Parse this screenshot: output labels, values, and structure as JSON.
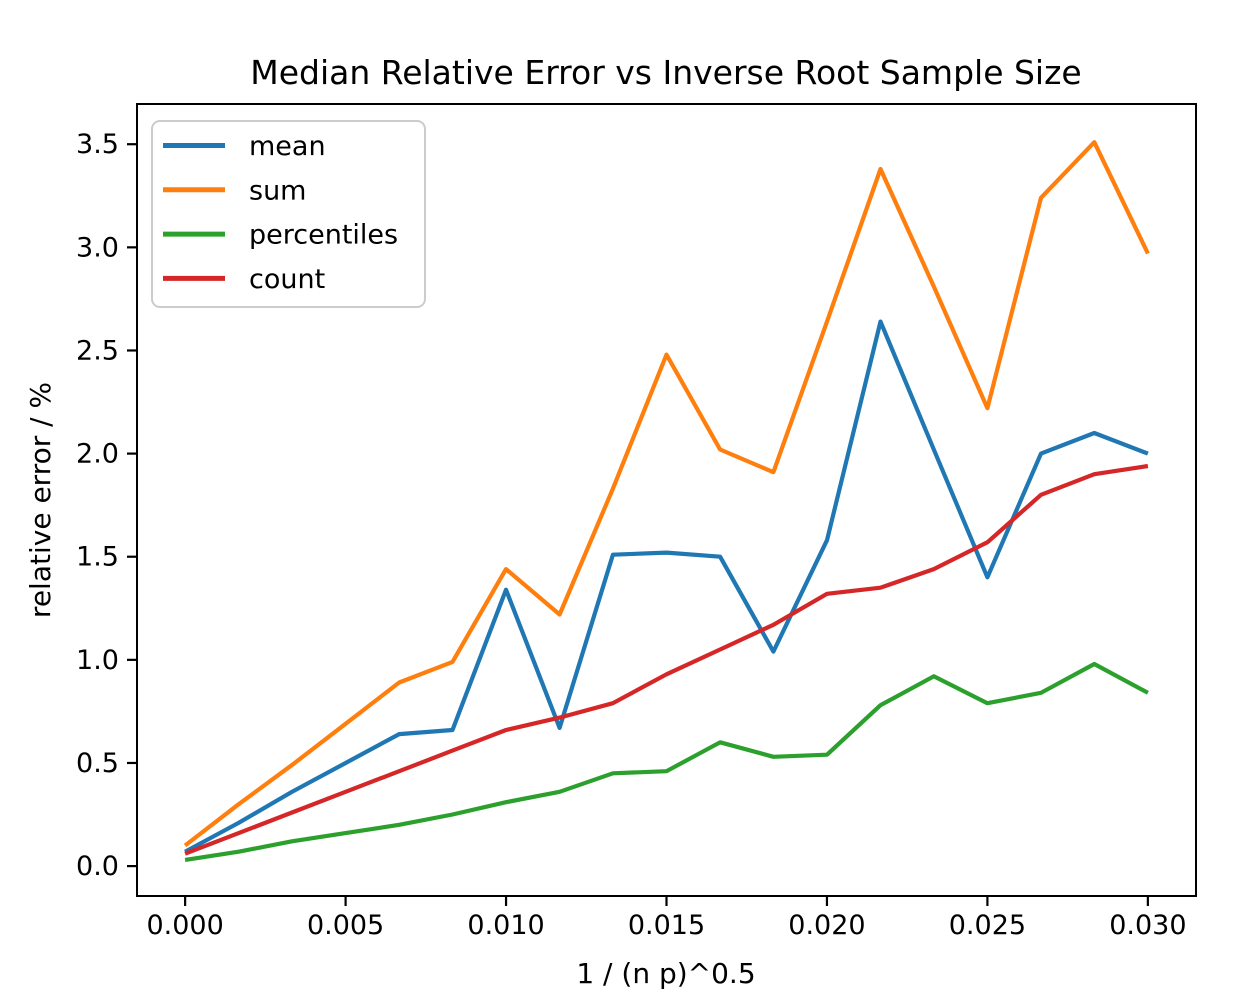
{
  "chart_data": {
    "type": "line",
    "title": "Median Relative Error vs Inverse Root Sample Size",
    "xlabel": "1 / (n p)^0.5",
    "ylabel": "relative error / %",
    "grid": false,
    "legend": {
      "position": "upper left"
    },
    "axis_color": "#000000",
    "legend_border_color": "#cccccc",
    "legend_fill_color": "#ffffff",
    "xlim": [
      -0.0015,
      0.0315
    ],
    "ylim": [
      -0.145,
      3.695
    ],
    "xticks": {
      "values": [
        0.0,
        0.005,
        0.01,
        0.015,
        0.02,
        0.025,
        0.03
      ],
      "labels": [
        "0.000",
        "0.005",
        "0.010",
        "0.015",
        "0.020",
        "0.025",
        "0.030"
      ]
    },
    "yticks": {
      "values": [
        0.0,
        0.5,
        1.0,
        1.5,
        2.0,
        2.5,
        3.0,
        3.5
      ],
      "labels": [
        "0.0",
        "0.5",
        "1.0",
        "1.5",
        "2.0",
        "2.5",
        "3.0",
        "3.5"
      ]
    },
    "x": [
      0.0,
      0.00167,
      0.00333,
      0.005,
      0.00667,
      0.00833,
      0.01,
      0.01167,
      0.01333,
      0.015,
      0.01667,
      0.01833,
      0.02,
      0.02167,
      0.02333,
      0.025,
      0.02667,
      0.02833,
      0.03
    ],
    "series": [
      {
        "name": "mean",
        "color": "#1f77b4",
        "values": [
          0.07,
          0.21,
          0.36,
          0.5,
          0.64,
          0.66,
          1.34,
          0.67,
          1.51,
          1.52,
          1.5,
          1.04,
          1.58,
          2.64,
          2.02,
          1.4,
          2.0,
          2.1,
          2.0
        ]
      },
      {
        "name": "sum",
        "color": "#ff7f0e",
        "values": [
          0.1,
          0.3,
          0.49,
          0.69,
          0.89,
          0.99,
          1.44,
          1.22,
          1.83,
          2.48,
          2.02,
          1.91,
          2.64,
          3.38,
          2.81,
          2.22,
          3.24,
          3.51,
          2.97
        ]
      },
      {
        "name": "percentiles",
        "color": "#2ca02c",
        "values": [
          0.03,
          0.07,
          0.12,
          0.16,
          0.2,
          0.25,
          0.31,
          0.36,
          0.45,
          0.46,
          0.6,
          0.53,
          0.54,
          0.78,
          0.92,
          0.79,
          0.84,
          0.98,
          0.84
        ]
      },
      {
        "name": "count",
        "color": "#d62728",
        "values": [
          0.06,
          0.16,
          0.26,
          0.36,
          0.46,
          0.56,
          0.66,
          0.72,
          0.79,
          0.93,
          1.05,
          1.17,
          1.32,
          1.35,
          1.44,
          1.57,
          1.8,
          1.9,
          1.94
        ]
      }
    ]
  }
}
